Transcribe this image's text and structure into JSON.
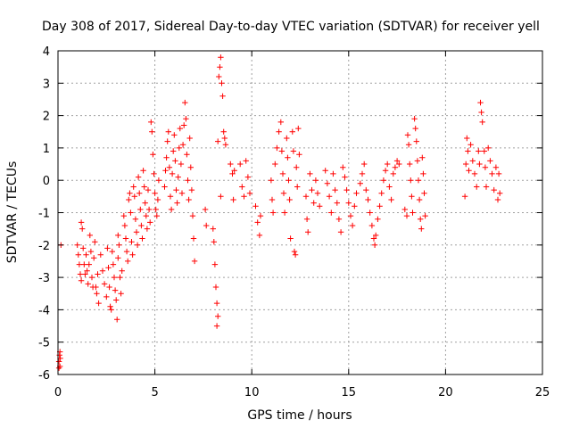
{
  "chart_data": {
    "type": "scatter",
    "title": "Day 308 of 2017, Sidereal Day-to-day VTEC variation (SDTVAR) for receiver yell",
    "xlabel": "GPS time / hours",
    "ylabel": "SDTVAR / TECUs",
    "xlim": [
      0,
      25
    ],
    "ylim": [
      -6,
      4
    ],
    "xticks": [
      "0",
      "5",
      "10",
      "15",
      "20",
      "25"
    ],
    "yticks": [
      "-6",
      "-5",
      "-4",
      "-3",
      "-2",
      "-1",
      "0",
      "1",
      "2",
      "3",
      "4"
    ],
    "grid": true,
    "marker": "+",
    "colors": {
      "points": "#ff0000",
      "grid": "#a0a0a0",
      "axes": "#000000"
    },
    "series": [
      {
        "name": "SDTVAR",
        "points": [
          [
            0.05,
            -5.8
          ],
          [
            0.05,
            -5.6
          ],
          [
            0.08,
            -5.4
          ],
          [
            0.1,
            -5.3
          ],
          [
            0.12,
            -5.5
          ],
          [
            0.1,
            -5.75
          ],
          [
            0.15,
            -2.0
          ],
          [
            1.0,
            -2.0
          ],
          [
            1.05,
            -2.3
          ],
          [
            1.1,
            -2.6
          ],
          [
            1.15,
            -2.9
          ],
          [
            1.2,
            -3.1
          ],
          [
            1.2,
            -1.3
          ],
          [
            1.25,
            -1.5
          ],
          [
            1.3,
            -2.1
          ],
          [
            1.35,
            -2.6
          ],
          [
            1.4,
            -2.9
          ],
          [
            1.45,
            -2.3
          ],
          [
            1.5,
            -2.8
          ],
          [
            1.55,
            -3.2
          ],
          [
            1.6,
            -2.6
          ],
          [
            1.65,
            -1.7
          ],
          [
            1.7,
            -2.2
          ],
          [
            1.75,
            -3.0
          ],
          [
            1.8,
            -3.3
          ],
          [
            1.85,
            -2.4
          ],
          [
            1.9,
            -1.9
          ],
          [
            1.95,
            -3.3
          ],
          [
            2.0,
            -3.5
          ],
          [
            2.05,
            -2.9
          ],
          [
            2.1,
            -3.8
          ],
          [
            2.2,
            -2.3
          ],
          [
            2.3,
            -2.8
          ],
          [
            2.4,
            -3.2
          ],
          [
            2.5,
            -3.6
          ],
          [
            2.55,
            -2.1
          ],
          [
            2.6,
            -2.7
          ],
          [
            2.65,
            -3.3
          ],
          [
            2.7,
            -3.9
          ],
          [
            2.75,
            -4.0
          ],
          [
            2.8,
            -2.2
          ],
          [
            2.85,
            -2.6
          ],
          [
            2.9,
            -3.0
          ],
          [
            2.95,
            -3.4
          ],
          [
            3.0,
            -3.7
          ],
          [
            3.05,
            -4.3
          ],
          [
            3.1,
            -2.4
          ],
          [
            3.1,
            -1.7
          ],
          [
            3.15,
            -2.0
          ],
          [
            3.2,
            -3.0
          ],
          [
            3.25,
            -3.5
          ],
          [
            3.3,
            -2.8
          ],
          [
            3.4,
            -1.1
          ],
          [
            3.45,
            -1.4
          ],
          [
            3.5,
            -1.8
          ],
          [
            3.55,
            -2.2
          ],
          [
            3.6,
            -2.5
          ],
          [
            3.65,
            -0.6
          ],
          [
            3.7,
            -0.4
          ],
          [
            3.75,
            -1.0
          ],
          [
            3.8,
            -1.9
          ],
          [
            3.85,
            -2.3
          ],
          [
            3.9,
            -0.2
          ],
          [
            3.95,
            -0.5
          ],
          [
            4.0,
            -1.2
          ],
          [
            4.05,
            -1.6
          ],
          [
            4.1,
            -2.0
          ],
          [
            4.15,
            0.1
          ],
          [
            4.2,
            -0.4
          ],
          [
            4.25,
            -0.9
          ],
          [
            4.3,
            -1.4
          ],
          [
            4.35,
            -1.8
          ],
          [
            4.4,
            0.3
          ],
          [
            4.45,
            -0.2
          ],
          [
            4.5,
            -0.7
          ],
          [
            4.55,
            -1.1
          ],
          [
            4.6,
            -1.5
          ],
          [
            4.65,
            -0.3
          ],
          [
            4.7,
            -0.9
          ],
          [
            4.75,
            -1.3
          ],
          [
            4.8,
            1.8
          ],
          [
            4.85,
            1.5
          ],
          [
            4.9,
            0.8
          ],
          [
            4.95,
            0.2
          ],
          [
            5.0,
            -0.4
          ],
          [
            5.05,
            -0.9
          ],
          [
            5.1,
            -1.1
          ],
          [
            5.15,
            -0.6
          ],
          [
            5.2,
            0.0
          ],
          [
            5.5,
            -0.2
          ],
          [
            5.55,
            0.3
          ],
          [
            5.6,
            0.7
          ],
          [
            5.65,
            1.2
          ],
          [
            5.7,
            1.5
          ],
          [
            5.75,
            0.4
          ],
          [
            5.8,
            -0.5
          ],
          [
            5.85,
            -0.9
          ],
          [
            5.9,
            0.2
          ],
          [
            5.95,
            0.9
          ],
          [
            6.0,
            1.4
          ],
          [
            6.05,
            0.6
          ],
          [
            6.1,
            -0.3
          ],
          [
            6.15,
            -0.7
          ],
          [
            6.2,
            0.1
          ],
          [
            6.25,
            1.0
          ],
          [
            6.3,
            1.6
          ],
          [
            6.35,
            0.5
          ],
          [
            6.4,
            -0.4
          ],
          [
            6.45,
            1.1
          ],
          [
            6.5,
            1.7
          ],
          [
            6.55,
            2.4
          ],
          [
            6.6,
            1.9
          ],
          [
            6.65,
            0.8
          ],
          [
            6.7,
            0.0
          ],
          [
            6.75,
            -0.6
          ],
          [
            6.8,
            1.3
          ],
          [
            6.85,
            0.4
          ],
          [
            6.9,
            -0.3
          ],
          [
            6.95,
            -1.1
          ],
          [
            7.0,
            -1.8
          ],
          [
            7.05,
            -2.5
          ],
          [
            7.6,
            -0.9
          ],
          [
            7.65,
            -1.4
          ],
          [
            8.0,
            -1.5
          ],
          [
            8.05,
            -1.9
          ],
          [
            8.1,
            -2.6
          ],
          [
            8.15,
            -3.3
          ],
          [
            8.2,
            -3.8
          ],
          [
            8.25,
            -4.2
          ],
          [
            8.2,
            -4.5
          ],
          [
            8.25,
            1.2
          ],
          [
            8.3,
            3.2
          ],
          [
            8.35,
            3.5
          ],
          [
            8.4,
            3.8
          ],
          [
            8.45,
            3.0
          ],
          [
            8.5,
            2.6
          ],
          [
            8.55,
            1.5
          ],
          [
            8.6,
            1.3
          ],
          [
            8.65,
            1.1
          ],
          [
            8.4,
            -0.5
          ],
          [
            8.9,
            0.5
          ],
          [
            9.0,
            0.2
          ],
          [
            9.05,
            -0.6
          ],
          [
            9.1,
            0.3
          ],
          [
            9.4,
            0.5
          ],
          [
            9.5,
            -0.2
          ],
          [
            9.6,
            -0.5
          ],
          [
            9.7,
            0.6
          ],
          [
            9.8,
            0.1
          ],
          [
            9.9,
            -0.4
          ],
          [
            10.2,
            -0.8
          ],
          [
            10.3,
            -1.3
          ],
          [
            10.4,
            -1.7
          ],
          [
            10.45,
            -1.1
          ],
          [
            11.0,
            0.0
          ],
          [
            11.05,
            -0.6
          ],
          [
            11.1,
            -1.0
          ],
          [
            11.2,
            0.5
          ],
          [
            11.3,
            1.0
          ],
          [
            11.4,
            1.5
          ],
          [
            11.5,
            1.8
          ],
          [
            11.55,
            0.9
          ],
          [
            11.6,
            0.2
          ],
          [
            11.65,
            -0.4
          ],
          [
            11.7,
            -1.0
          ],
          [
            11.8,
            1.3
          ],
          [
            11.85,
            0.7
          ],
          [
            11.9,
            0.0
          ],
          [
            11.95,
            -0.6
          ],
          [
            12.0,
            -1.8
          ],
          [
            12.1,
            1.5
          ],
          [
            12.15,
            0.9
          ],
          [
            12.2,
            -2.2
          ],
          [
            12.25,
            -2.3
          ],
          [
            12.3,
            0.4
          ],
          [
            12.35,
            -0.2
          ],
          [
            12.4,
            1.6
          ],
          [
            12.45,
            0.8
          ],
          [
            12.8,
            -0.5
          ],
          [
            12.85,
            -1.2
          ],
          [
            12.9,
            -1.6
          ],
          [
            13.0,
            0.2
          ],
          [
            13.1,
            -0.3
          ],
          [
            13.2,
            -0.7
          ],
          [
            13.3,
            0.0
          ],
          [
            13.4,
            -0.4
          ],
          [
            13.5,
            -0.8
          ],
          [
            13.8,
            0.3
          ],
          [
            13.9,
            -0.1
          ],
          [
            14.0,
            -0.5
          ],
          [
            14.1,
            -1.0
          ],
          [
            14.2,
            0.2
          ],
          [
            14.3,
            -0.3
          ],
          [
            14.4,
            -0.7
          ],
          [
            14.5,
            -1.2
          ],
          [
            14.6,
            -1.6
          ],
          [
            14.7,
            0.4
          ],
          [
            14.8,
            0.1
          ],
          [
            14.9,
            -0.3
          ],
          [
            15.0,
            -0.7
          ],
          [
            15.1,
            -1.1
          ],
          [
            15.2,
            -1.4
          ],
          [
            15.3,
            -0.8
          ],
          [
            15.4,
            -0.4
          ],
          [
            15.6,
            -0.1
          ],
          [
            15.7,
            0.2
          ],
          [
            15.8,
            0.5
          ],
          [
            15.9,
            -0.3
          ],
          [
            16.0,
            -0.6
          ],
          [
            16.1,
            -1.0
          ],
          [
            16.2,
            -1.4
          ],
          [
            16.3,
            -1.8
          ],
          [
            16.35,
            -2.0
          ],
          [
            16.4,
            -1.7
          ],
          [
            16.5,
            -1.2
          ],
          [
            16.6,
            -0.8
          ],
          [
            16.7,
            -0.4
          ],
          [
            16.8,
            0.0
          ],
          [
            16.9,
            0.3
          ],
          [
            17.0,
            0.5
          ],
          [
            17.1,
            -0.2
          ],
          [
            17.2,
            -0.6
          ],
          [
            17.3,
            0.2
          ],
          [
            17.4,
            0.4
          ],
          [
            17.5,
            0.6
          ],
          [
            17.6,
            0.5
          ],
          [
            17.9,
            -0.9
          ],
          [
            18.0,
            -1.1
          ],
          [
            18.05,
            1.4
          ],
          [
            18.1,
            1.1
          ],
          [
            18.15,
            0.5
          ],
          [
            18.2,
            0.0
          ],
          [
            18.25,
            -0.5
          ],
          [
            18.3,
            -1.0
          ],
          [
            18.4,
            1.9
          ],
          [
            18.45,
            1.6
          ],
          [
            18.5,
            1.2
          ],
          [
            18.55,
            0.6
          ],
          [
            18.6,
            0.0
          ],
          [
            18.65,
            -0.6
          ],
          [
            18.7,
            -1.2
          ],
          [
            18.75,
            -1.5
          ],
          [
            18.8,
            0.7
          ],
          [
            18.85,
            0.2
          ],
          [
            18.9,
            -0.4
          ],
          [
            18.95,
            -1.1
          ],
          [
            21.0,
            -0.5
          ],
          [
            21.05,
            0.5
          ],
          [
            21.1,
            1.3
          ],
          [
            21.15,
            0.9
          ],
          [
            21.2,
            0.3
          ],
          [
            21.3,
            1.1
          ],
          [
            21.4,
            0.6
          ],
          [
            21.5,
            0.2
          ],
          [
            21.6,
            -0.2
          ],
          [
            21.7,
            0.9
          ],
          [
            21.75,
            0.5
          ],
          [
            21.8,
            2.4
          ],
          [
            21.85,
            2.1
          ],
          [
            21.9,
            1.8
          ],
          [
            22.0,
            0.9
          ],
          [
            22.05,
            0.4
          ],
          [
            22.1,
            -0.2
          ],
          [
            22.2,
            1.0
          ],
          [
            22.3,
            0.6
          ],
          [
            22.4,
            0.2
          ],
          [
            22.5,
            -0.3
          ],
          [
            22.6,
            0.4
          ],
          [
            22.7,
            -0.6
          ],
          [
            22.75,
            0.2
          ],
          [
            22.8,
            -0.4
          ]
        ]
      }
    ]
  }
}
